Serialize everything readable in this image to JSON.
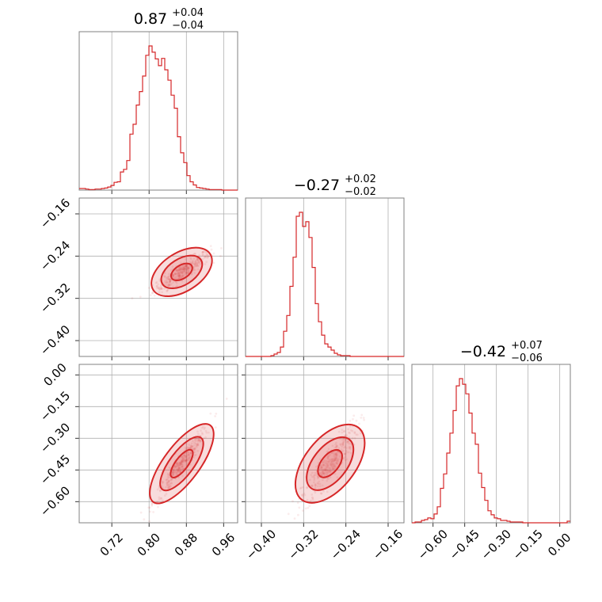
{
  "chart_data": {
    "type": "corner",
    "color": "#d62728",
    "grid": true,
    "parameters": [
      {
        "value": "0.87",
        "upper": "+0.04",
        "lower": "−0.04",
        "range": [
          0.65,
          0.99
        ],
        "ticks": [
          0.72,
          0.8,
          0.88,
          0.96
        ],
        "tick_labels": [
          "0.72",
          "0.80",
          "0.88",
          "0.96"
        ]
      },
      {
        "value": "−0.27",
        "upper": "+0.02",
        "lower": "−0.02",
        "range": [
          -0.43,
          -0.13
        ],
        "ticks": [
          -0.4,
          -0.32,
          -0.24,
          -0.16
        ],
        "tick_labels": [
          "−0.40",
          "−0.32",
          "−0.24",
          "−0.16"
        ]
      },
      {
        "value": "−0.42",
        "upper": "+0.07",
        "lower": "−0.06",
        "range": [
          -0.7,
          0.05
        ],
        "ticks": [
          -0.6,
          -0.45,
          -0.3,
          -0.15,
          0.0
        ],
        "tick_labels": [
          "−0.60",
          "−0.45",
          "−0.30",
          "−0.15",
          "0.00"
        ]
      }
    ],
    "marginals": [
      {
        "bin_start": 0.65,
        "bin_width": 0.0068,
        "counts": [
          0.3,
          0.3,
          0.2,
          0.1,
          0.1,
          0.2,
          0.2,
          0.3,
          0.4,
          0.6,
          0.9,
          1.5,
          1.6,
          3.5,
          4.0,
          5.7,
          10.8,
          12.7,
          16.4,
          19.0,
          22.0,
          26.0,
          27.8,
          26.6,
          25.3,
          24.0,
          25.4,
          23.2,
          21.2,
          18.3,
          15.8,
          10.3,
          7.2,
          5.3,
          2.8,
          1.6,
          1.0,
          0.5,
          0.4,
          0.3,
          0.2,
          0.1,
          0.1,
          0.1,
          0.1,
          0.0,
          0.0,
          0.0,
          0.0,
          0.0
        ]
      },
      {
        "bin_start": -0.43,
        "bin_width": 0.006,
        "counts": [
          0.0,
          0.0,
          0.0,
          0.0,
          0.0,
          0.0,
          0.0,
          0.0,
          0.1,
          0.3,
          0.5,
          1.2,
          3.2,
          5.2,
          8.9,
          12.6,
          17.8,
          18.3,
          16.5,
          17.1,
          15.1,
          11.3,
          6.7,
          4.4,
          2.7,
          1.6,
          1.2,
          0.8,
          0.4,
          0.2,
          0.1,
          0.1,
          0.1,
          0.0,
          0.0,
          0.0,
          0.0,
          0.0,
          0.0,
          0.0,
          0.0,
          0.0,
          0.0,
          0.0,
          0.0,
          0.0,
          0.0,
          0.0,
          0.0,
          0.0
        ]
      },
      {
        "bin_start": -0.7,
        "bin_width": 0.015,
        "counts": [
          0.0,
          0.1,
          0.1,
          0.3,
          0.4,
          0.6,
          0.5,
          1.1,
          2.0,
          4.3,
          6.1,
          8.7,
          11.2,
          14.0,
          17.1,
          18.0,
          17.3,
          16.1,
          13.7,
          11.2,
          9.8,
          6.2,
          4.4,
          2.8,
          1.5,
          1.0,
          0.6,
          0.5,
          0.3,
          0.3,
          0.2,
          0.1,
          0.1,
          0.1,
          0.1,
          0.0,
          0.0,
          0.0,
          0.0,
          0.0,
          0.0,
          0.0,
          0.0,
          0.0,
          0.0,
          0.0,
          0.0,
          0.0,
          0.0,
          0.2
        ]
      }
    ],
    "correlation": {
      "x": [
        0.845,
        0.882,
        0.925
      ],
      "y": [
        -0.286,
        -0.262,
        -0.233
      ]
    }
  }
}
